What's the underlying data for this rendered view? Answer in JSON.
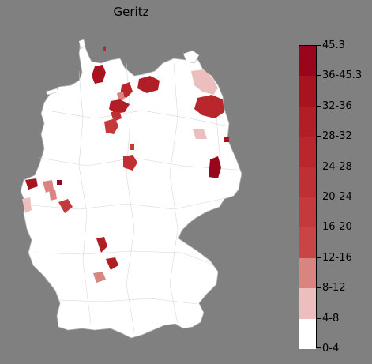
{
  "title": "Geritz",
  "legend": {
    "labels": [
      "45.3",
      "36-45.3",
      "32-36",
      "28-32",
      "24-28",
      "20-24",
      "16-20",
      "12-16",
      "8-12",
      "4-8",
      "0-4"
    ],
    "colors": [
      "#99061c",
      "#a7141f",
      "#b21e25",
      "#b9272d",
      "#bf3034",
      "#c43a3c",
      "#c94444",
      "#d98481",
      "#ecbfbe",
      "#ffffff"
    ]
  },
  "colors": {
    "background": "#808080",
    "country_fill": "#ffffff",
    "border": "#c8c8c8"
  }
}
